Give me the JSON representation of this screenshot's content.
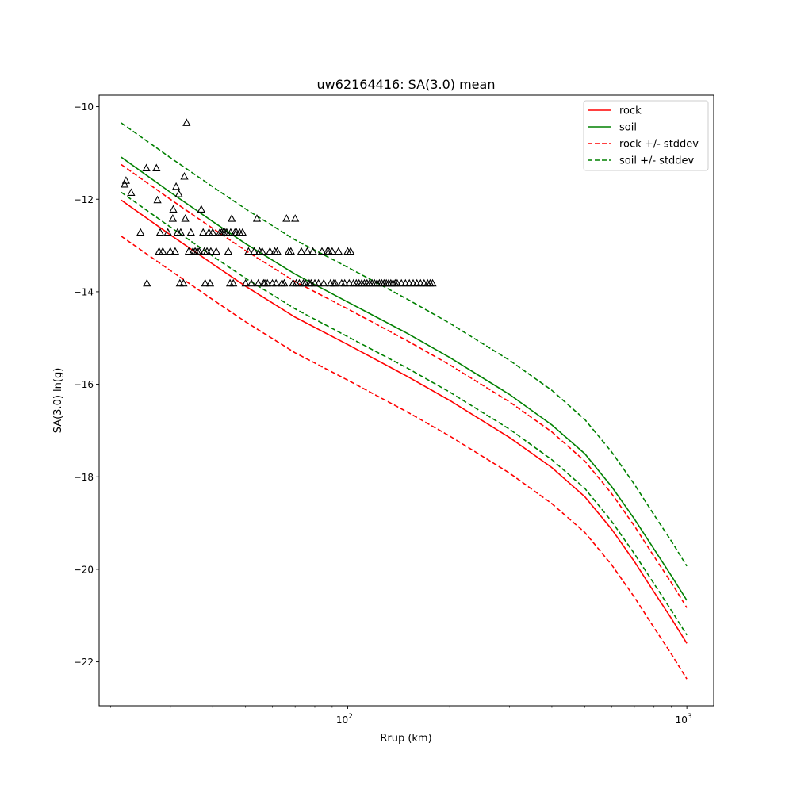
{
  "chart_data": {
    "type": "scatter",
    "title": "uw62164416: SA(3.0) mean",
    "xlabel": "Rrup (km)",
    "ylabel": "SA(3.0) ln(g)",
    "xscale": "log",
    "xlim": [
      18.5,
      1200
    ],
    "ylim": [
      -22.95,
      -9.75
    ],
    "grid": false,
    "legend_position": "top-right",
    "x_ticks": [
      {
        "value": 100,
        "base": "10",
        "exp": "2"
      },
      {
        "value": 1000,
        "base": "10",
        "exp": "3"
      }
    ],
    "x_minor_ticks": [
      20,
      30,
      40,
      50,
      60,
      70,
      80,
      90,
      200,
      300,
      400,
      500,
      600,
      700,
      800,
      900
    ],
    "y_ticks": [
      {
        "value": -22,
        "label": "−22"
      },
      {
        "value": -20,
        "label": "−20"
      },
      {
        "value": -18,
        "label": "−18"
      },
      {
        "value": -16,
        "label": "−16"
      },
      {
        "value": -14,
        "label": "−14"
      },
      {
        "value": -12,
        "label": "−12"
      },
      {
        "value": -10,
        "label": "−10"
      }
    ],
    "curve_x": [
      21.5,
      30,
      40,
      50,
      70,
      100,
      150,
      200,
      300,
      400,
      500,
      600,
      700,
      800,
      900,
      1000
    ],
    "series": [
      {
        "name": "rock",
        "color": "#ff0000",
        "dash": false,
        "values": [
          -12.02,
          -12.77,
          -13.4,
          -13.88,
          -14.55,
          -15.14,
          -15.83,
          -16.35,
          -17.15,
          -17.8,
          -18.43,
          -19.13,
          -19.83,
          -20.49,
          -21.06,
          -21.6
        ]
      },
      {
        "name": "soil",
        "color": "#008000",
        "dash": false,
        "values": [
          -11.09,
          -11.85,
          -12.48,
          -12.96,
          -13.62,
          -14.22,
          -14.9,
          -15.42,
          -16.22,
          -16.88,
          -17.5,
          -18.21,
          -18.91,
          -19.56,
          -20.14,
          -20.67
        ]
      },
      {
        "name": "rock +/- stddev",
        "color": "#ff0000",
        "dash": true,
        "values": [
          -11.25,
          -12.0,
          -12.63,
          -13.11,
          -13.78,
          -14.37,
          -15.06,
          -15.58,
          -16.38,
          -17.03,
          -17.66,
          -18.36,
          -19.06,
          -19.72,
          -20.29,
          -20.83
        ]
      },
      {
        "name": "",
        "color": "#ff0000",
        "dash": true,
        "values": [
          -12.8,
          -13.54,
          -14.17,
          -14.65,
          -15.32,
          -15.91,
          -16.6,
          -17.12,
          -17.92,
          -18.58,
          -19.2,
          -19.9,
          -20.6,
          -21.26,
          -21.83,
          -22.37
        ]
      },
      {
        "name": "soil +/- stddev",
        "color": "#008000",
        "dash": true,
        "values": [
          -10.35,
          -11.1,
          -11.73,
          -12.21,
          -12.88,
          -13.47,
          -14.16,
          -14.68,
          -15.48,
          -16.13,
          -16.76,
          -17.46,
          -18.16,
          -18.82,
          -19.39,
          -19.93
        ]
      },
      {
        "name": "",
        "color": "#008000",
        "dash": true,
        "values": [
          -11.85,
          -12.6,
          -13.23,
          -13.71,
          -14.37,
          -14.97,
          -15.65,
          -16.17,
          -16.97,
          -17.63,
          -18.25,
          -18.96,
          -19.66,
          -20.31,
          -20.89,
          -21.42
        ]
      }
    ],
    "observations": {
      "marker": "triangle",
      "color": "#000000",
      "points": [
        [
          22.0,
          -11.68
        ],
        [
          22.2,
          -11.6
        ],
        [
          23.0,
          -11.86
        ],
        [
          24.5,
          -12.72
        ],
        [
          25.5,
          -11.33
        ],
        [
          25.6,
          -13.82
        ],
        [
          27.3,
          -11.33
        ],
        [
          27.5,
          -12.02
        ],
        [
          27.8,
          -13.13
        ],
        [
          28.0,
          -12.72
        ],
        [
          28.5,
          -13.13
        ],
        [
          29.5,
          -12.72
        ],
        [
          30.0,
          -13.13
        ],
        [
          30.5,
          -12.42
        ],
        [
          30.6,
          -12.22
        ],
        [
          31.0,
          -13.13
        ],
        [
          31.2,
          -11.73
        ],
        [
          31.5,
          -12.72
        ],
        [
          31.8,
          -11.89
        ],
        [
          32.0,
          -13.82
        ],
        [
          32.2,
          -12.72
        ],
        [
          32.8,
          -13.82
        ],
        [
          33.0,
          -11.51
        ],
        [
          33.2,
          -12.42
        ],
        [
          33.5,
          -10.35
        ],
        [
          34.0,
          -13.13
        ],
        [
          34.5,
          -12.72
        ],
        [
          35.0,
          -13.13
        ],
        [
          35.5,
          -13.13
        ],
        [
          36.0,
          -13.13
        ],
        [
          36.5,
          -13.13
        ],
        [
          37.0,
          -12.22
        ],
        [
          37.5,
          -12.72
        ],
        [
          37.8,
          -13.13
        ],
        [
          38.0,
          -13.82
        ],
        [
          38.5,
          -13.13
        ],
        [
          39.0,
          -12.72
        ],
        [
          39.3,
          -13.82
        ],
        [
          39.5,
          -13.13
        ],
        [
          40.0,
          -12.72
        ],
        [
          41.0,
          -13.13
        ],
        [
          42.0,
          -12.72
        ],
        [
          42.5,
          -12.72
        ],
        [
          43.0,
          -12.72
        ],
        [
          43.5,
          -12.72
        ],
        [
          44.0,
          -12.72
        ],
        [
          44.5,
          -13.13
        ],
        [
          45.0,
          -13.82
        ],
        [
          45.2,
          -12.72
        ],
        [
          45.5,
          -12.42
        ],
        [
          46.0,
          -13.82
        ],
        [
          46.5,
          -12.72
        ],
        [
          47.0,
          -12.72
        ],
        [
          48.0,
          -12.72
        ],
        [
          49.0,
          -12.72
        ],
        [
          50.0,
          -13.82
        ],
        [
          51.0,
          -13.13
        ],
        [
          52.0,
          -13.82
        ],
        [
          53.0,
          -13.13
        ],
        [
          54.0,
          -12.42
        ],
        [
          54.5,
          -13.82
        ],
        [
          55.0,
          -13.13
        ],
        [
          56.0,
          -13.13
        ],
        [
          56.5,
          -13.82
        ],
        [
          57.0,
          -13.82
        ],
        [
          58.0,
          -13.82
        ],
        [
          59.0,
          -13.13
        ],
        [
          60.0,
          -13.82
        ],
        [
          61.0,
          -13.13
        ],
        [
          61.5,
          -13.82
        ],
        [
          62.0,
          -13.13
        ],
        [
          64.0,
          -13.82
        ],
        [
          65.0,
          -13.82
        ],
        [
          66.0,
          -12.42
        ],
        [
          67.0,
          -13.13
        ],
        [
          68.0,
          -13.13
        ],
        [
          69.0,
          -13.82
        ],
        [
          70.0,
          -12.42
        ],
        [
          70.5,
          -13.82
        ],
        [
          72.0,
          -13.82
        ],
        [
          73.0,
          -13.13
        ],
        [
          74.0,
          -13.82
        ],
        [
          75.0,
          -13.82
        ],
        [
          76.0,
          -13.13
        ],
        [
          77.0,
          -13.82
        ],
        [
          78.0,
          -13.82
        ],
        [
          79.0,
          -13.13
        ],
        [
          80.0,
          -13.82
        ],
        [
          82.0,
          -13.82
        ],
        [
          84.0,
          -13.13
        ],
        [
          85.0,
          -13.82
        ],
        [
          87.0,
          -13.13
        ],
        [
          88.0,
          -13.13
        ],
        [
          89.0,
          -13.82
        ],
        [
          90.0,
          -13.13
        ],
        [
          91.0,
          -13.82
        ],
        [
          92.0,
          -13.82
        ],
        [
          94.0,
          -13.13
        ],
        [
          96.0,
          -13.82
        ],
        [
          98.0,
          -13.82
        ],
        [
          100.0,
          -13.13
        ],
        [
          101.0,
          -13.82
        ],
        [
          102.0,
          -13.13
        ],
        [
          104.0,
          -13.82
        ],
        [
          106.0,
          -13.82
        ],
        [
          108.0,
          -13.82
        ],
        [
          110.0,
          -13.82
        ],
        [
          112.0,
          -13.82
        ],
        [
          114.0,
          -13.82
        ],
        [
          116.0,
          -13.82
        ],
        [
          118.0,
          -13.82
        ],
        [
          120.0,
          -13.82
        ],
        [
          122.0,
          -13.82
        ],
        [
          124.0,
          -13.82
        ],
        [
          126.0,
          -13.82
        ],
        [
          128.0,
          -13.82
        ],
        [
          130.0,
          -13.82
        ],
        [
          132.0,
          -13.82
        ],
        [
          134.0,
          -13.82
        ],
        [
          136.0,
          -13.82
        ],
        [
          138.0,
          -13.82
        ],
        [
          140.0,
          -13.82
        ],
        [
          144.0,
          -13.82
        ],
        [
          148.0,
          -13.82
        ],
        [
          152.0,
          -13.82
        ],
        [
          156.0,
          -13.82
        ],
        [
          160.0,
          -13.82
        ],
        [
          164.0,
          -13.82
        ],
        [
          168.0,
          -13.82
        ],
        [
          172.0,
          -13.82
        ],
        [
          175.0,
          -13.82
        ],
        [
          178.0,
          -13.82
        ]
      ]
    }
  }
}
